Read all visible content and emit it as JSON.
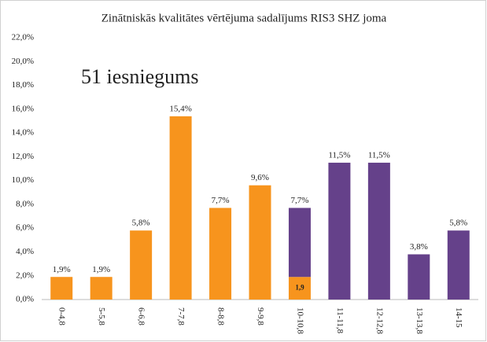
{
  "chart_data": {
    "type": "bar",
    "stacked": true,
    "title": "Zinātniskās kvalitātes vērtējuma sadalījums RIS3 SHZ joma",
    "annotation": "51 iesniegums",
    "categories": [
      "0-4,8",
      "5-5,8",
      "6-6,8",
      "7-7,8",
      "8-8,8",
      "9-9,8",
      "10-10,8",
      "11-11,8",
      "12-12,8",
      "13-13,8",
      "14-15"
    ],
    "series": [
      {
        "color": "#f7941d",
        "values": [
          1.9,
          1.9,
          5.8,
          15.4,
          7.7,
          9.6,
          1.9,
          null,
          null,
          null,
          null
        ],
        "value_labels": [
          null,
          null,
          null,
          null,
          null,
          null,
          "1,9",
          null,
          null,
          null,
          null
        ]
      },
      {
        "color": "#65418a",
        "values": [
          null,
          null,
          null,
          null,
          null,
          null,
          5.8,
          11.5,
          11.5,
          3.8,
          5.8
        ]
      }
    ],
    "totals": [
      1.9,
      1.9,
      5.8,
      15.4,
      7.7,
      9.6,
      7.7,
      11.5,
      11.5,
      3.8,
      5.8
    ],
    "total_labels": [
      "1,9%",
      "1,9%",
      "5,8%",
      "15,4%",
      "7,7%",
      "9,6%",
      "7,7%",
      "11,5%",
      "11,5%",
      "3,8%",
      "5,8%"
    ],
    "ylim": [
      0,
      22
    ],
    "yticks": [
      {
        "value": 0,
        "label": "0,0%"
      },
      {
        "value": 2,
        "label": "2,0%"
      },
      {
        "value": 4,
        "label": "4,0%"
      },
      {
        "value": 6,
        "label": "6,0%"
      },
      {
        "value": 8,
        "label": "8,0%"
      },
      {
        "value": 10,
        "label": "10,0%"
      },
      {
        "value": 12,
        "label": "12,0%"
      },
      {
        "value": 14,
        "label": "14,0%"
      },
      {
        "value": 16,
        "label": "16,0%"
      },
      {
        "value": 18,
        "label": "18,0%"
      },
      {
        "value": 20,
        "label": "20,0%"
      },
      {
        "value": 22,
        "label": "22,0%"
      }
    ],
    "grid": false
  }
}
